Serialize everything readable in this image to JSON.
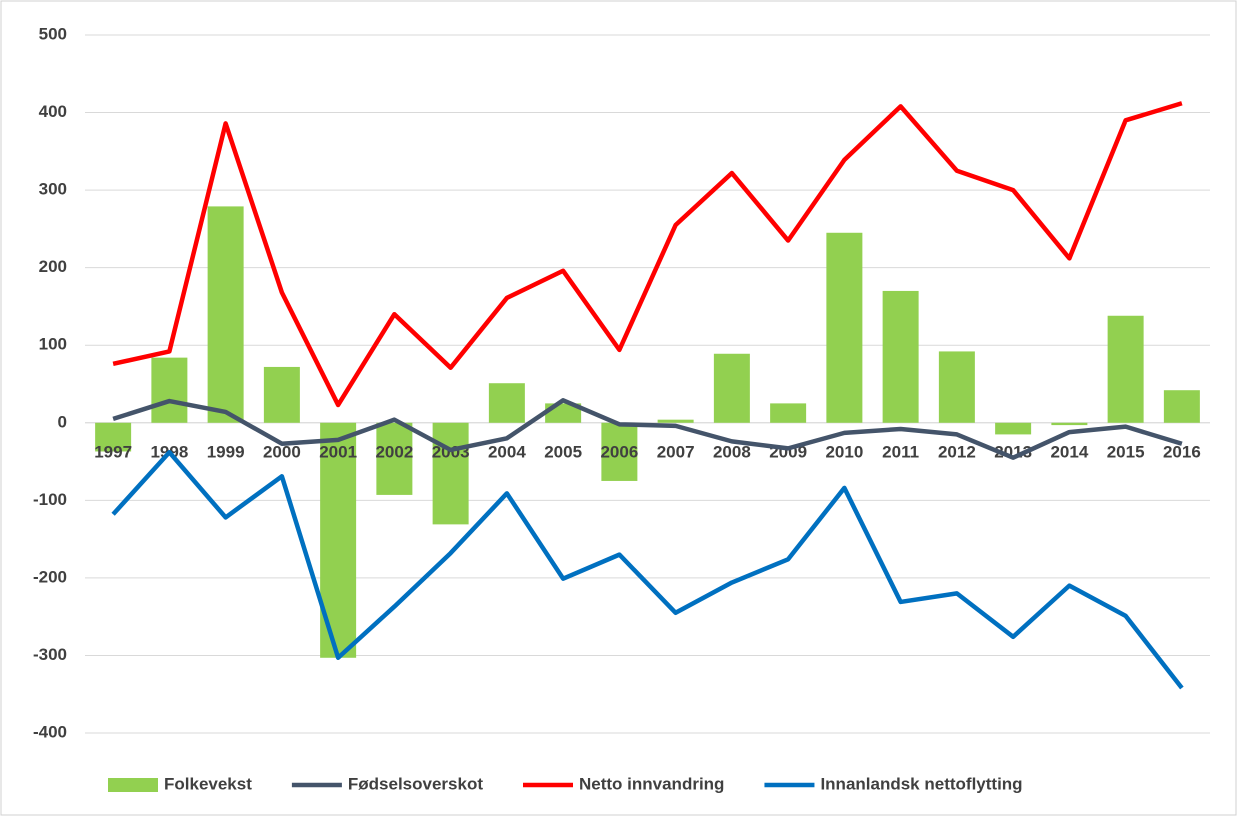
{
  "chart_data": {
    "type": "combo",
    "categories": [
      "1997",
      "1998",
      "1999",
      "2000",
      "2001",
      "2002",
      "2003",
      "2004",
      "2005",
      "2006",
      "2007",
      "2008",
      "2009",
      "2010",
      "2011",
      "2012",
      "2013",
      "2014",
      "2015",
      "2016"
    ],
    "series": [
      {
        "name": "Folkevekst",
        "type": "bar",
        "color": "#92d050",
        "values": [
          -37,
          84,
          279,
          72,
          -303,
          -93,
          -131,
          51,
          25,
          -75,
          4,
          89,
          25,
          245,
          170,
          92,
          -15,
          -3,
          138,
          42
        ]
      },
      {
        "name": "Fødselsoverskot",
        "type": "line",
        "color": "#44546a",
        "values": [
          5,
          28,
          14,
          -27,
          -22,
          4,
          -35,
          -20,
          29,
          -2,
          -4,
          -24,
          -33,
          -13,
          -8,
          -15,
          -45,
          -12,
          -5,
          -27
        ]
      },
      {
        "name": "Netto innvandring",
        "type": "line",
        "color": "#ff0000",
        "values": [
          76,
          92,
          386,
          168,
          23,
          140,
          71,
          161,
          196,
          94,
          255,
          322,
          235,
          339,
          408,
          325,
          300,
          212,
          390,
          412
        ]
      },
      {
        "name": "Innanlandsk nettoflytting",
        "type": "line",
        "color": "#0070c0",
        "values": [
          -118,
          -38,
          -122,
          -69,
          -303,
          -237,
          -168,
          -91,
          -201,
          -170,
          -245,
          -206,
          -176,
          -84,
          -231,
          -220,
          -276,
          -210,
          -249,
          -342
        ]
      }
    ],
    "ylim": [
      -400,
      500
    ],
    "yticks": [
      -400,
      -300,
      -200,
      -100,
      0,
      100,
      200,
      300,
      400,
      500
    ],
    "grid": true,
    "legend": "bottom"
  }
}
